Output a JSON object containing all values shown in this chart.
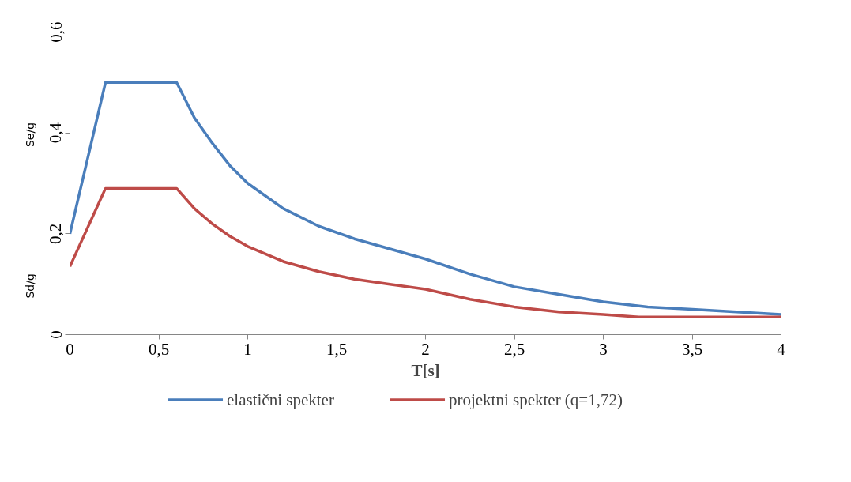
{
  "chart_data": {
    "type": "line",
    "xlabel": "T[s]",
    "ylabel": "Se/g",
    "annotations": [
      "Sd/g"
    ],
    "xlim": [
      0,
      4
    ],
    "ylim": [
      0,
      0.6
    ],
    "xticks": [
      {
        "value": 0,
        "label": "0"
      },
      {
        "value": 0.5,
        "label": "0,5"
      },
      {
        "value": 1,
        "label": "1"
      },
      {
        "value": 1.5,
        "label": "1,5"
      },
      {
        "value": 2,
        "label": "2"
      },
      {
        "value": 2.5,
        "label": "2,5"
      },
      {
        "value": 3,
        "label": "3"
      },
      {
        "value": 3.5,
        "label": "3,5"
      },
      {
        "value": 4,
        "label": "4"
      }
    ],
    "yticks": [
      {
        "value": 0,
        "label": "0"
      },
      {
        "value": 0.2,
        "label": "0,2"
      },
      {
        "value": 0.4,
        "label": "0,4"
      },
      {
        "value": 0.6,
        "label": "0,6"
      }
    ],
    "grid": false,
    "legend": "bottom",
    "marker": "none",
    "line_style": "solid",
    "series": [
      {
        "name": "elastični spekter",
        "color": "#4a7ebb",
        "x": [
          0,
          0.2,
          0.6,
          0.7,
          0.8,
          0.9,
          1.0,
          1.2,
          1.4,
          1.6,
          1.8,
          2.0,
          2.25,
          2.5,
          2.75,
          3.0,
          3.25,
          3.5,
          3.75,
          4.0
        ],
        "values": [
          0.2,
          0.5,
          0.5,
          0.43,
          0.38,
          0.335,
          0.3,
          0.25,
          0.215,
          0.19,
          0.17,
          0.15,
          0.12,
          0.095,
          0.08,
          0.065,
          0.055,
          0.05,
          0.045,
          0.04
        ]
      },
      {
        "name": "projektni spekter (q=1,72)",
        "color": "#be4b48",
        "x": [
          0,
          0.2,
          0.6,
          0.7,
          0.8,
          0.9,
          1.0,
          1.2,
          1.4,
          1.6,
          1.8,
          2.0,
          2.25,
          2.5,
          2.75,
          3.0,
          3.2,
          3.5,
          4.0
        ],
        "values": [
          0.135,
          0.29,
          0.29,
          0.25,
          0.22,
          0.195,
          0.175,
          0.145,
          0.125,
          0.11,
          0.1,
          0.09,
          0.07,
          0.055,
          0.045,
          0.04,
          0.035,
          0.035,
          0.035
        ]
      }
    ]
  }
}
